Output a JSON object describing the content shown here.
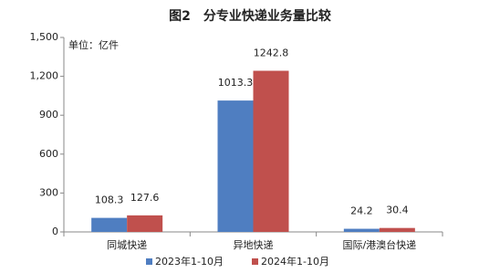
{
  "chart_data": {
    "type": "bar",
    "title": "图2　分专业快递业务量比较",
    "y_label": "单位：亿件",
    "categories": [
      "同城快递",
      "异地快递",
      "国际/港澳台快递"
    ],
    "series": [
      {
        "name": "2023年1-10月",
        "color": "#4f7ec1",
        "values": [
          108.3,
          1013.3,
          24.2
        ]
      },
      {
        "name": "2024年1-10月",
        "color": "#c0504d",
        "values": [
          127.6,
          1242.8,
          30.4
        ]
      }
    ],
    "ylim": [
      0,
      1500
    ],
    "yticks": [
      0,
      300,
      600,
      900,
      {
        "value": 1200,
        "label": "1,200"
      },
      {
        "value": 1500,
        "label": "1,500"
      }
    ],
    "grid": false,
    "legend": "bottom"
  }
}
